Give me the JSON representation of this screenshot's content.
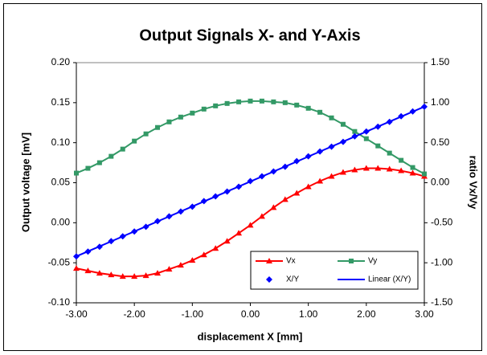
{
  "chart_data": {
    "type": "line",
    "title": "Output Signals X- and Y-Axis",
    "x_label": "displacement X [mm]",
    "y_label": "Output voltage [mV]",
    "y2_label": "ratio Vx/Vy",
    "x": [
      -3.0,
      -2.8,
      -2.6,
      -2.4,
      -2.2,
      -2.0,
      -1.8,
      -1.6,
      -1.4,
      -1.2,
      -1.0,
      -0.8,
      -0.6,
      -0.4,
      -0.2,
      0.0,
      0.2,
      0.4,
      0.6,
      0.8,
      1.0,
      1.2,
      1.4,
      1.6,
      1.8,
      2.0,
      2.2,
      2.4,
      2.6,
      2.8,
      3.0
    ],
    "series": [
      {
        "name": "Vx",
        "color": "#ff0000",
        "marker": "triangle",
        "line": true,
        "values": [
          -0.057,
          -0.06,
          -0.063,
          -0.065,
          -0.067,
          -0.067,
          -0.066,
          -0.063,
          -0.058,
          -0.053,
          -0.047,
          -0.04,
          -0.032,
          -0.023,
          -0.013,
          -0.003,
          0.008,
          0.019,
          0.029,
          0.037,
          0.045,
          0.052,
          0.058,
          0.063,
          0.066,
          0.068,
          0.068,
          0.067,
          0.065,
          0.062,
          0.058
        ]
      },
      {
        "name": "Vy",
        "color": "#339966",
        "marker": "square",
        "line": true,
        "values": [
          0.062,
          0.068,
          0.075,
          0.083,
          0.092,
          0.102,
          0.111,
          0.119,
          0.126,
          0.132,
          0.137,
          0.142,
          0.146,
          0.149,
          0.151,
          0.152,
          0.152,
          0.151,
          0.15,
          0.147,
          0.143,
          0.138,
          0.131,
          0.123,
          0.114,
          0.105,
          0.096,
          0.087,
          0.078,
          0.069,
          0.061
        ]
      },
      {
        "name": "X/Y",
        "color": "#0000ff",
        "marker": "diamond",
        "line": false,
        "axis": "y2",
        "values": [
          -0.92,
          -0.86,
          -0.8,
          -0.73,
          -0.67,
          -0.61,
          -0.55,
          -0.48,
          -0.42,
          -0.36,
          -0.3,
          -0.23,
          -0.17,
          -0.11,
          -0.05,
          0.02,
          0.08,
          0.14,
          0.2,
          0.27,
          0.33,
          0.39,
          0.45,
          0.51,
          0.58,
          0.64,
          0.7,
          0.76,
          0.83,
          0.89,
          0.95
        ]
      },
      {
        "name": "Linear (X/Y)",
        "color": "#0000ff",
        "marker": "none",
        "line": true,
        "axis": "y2",
        "x": [
          -3.0,
          3.0
        ],
        "values": [
          -0.92,
          0.95
        ]
      }
    ],
    "xlim": [
      -3,
      3
    ],
    "xticks": [
      {
        "value": -3,
        "label": "-3.00"
      },
      {
        "value": -2,
        "label": "-2.00"
      },
      {
        "value": -1,
        "label": "-1.00"
      },
      {
        "value": 0,
        "label": "0.00"
      },
      {
        "value": 1,
        "label": "1.00"
      },
      {
        "value": 2,
        "label": "2.00"
      },
      {
        "value": 3,
        "label": "3.00"
      }
    ],
    "ylim": [
      -0.1,
      0.2
    ],
    "yticks": [
      {
        "value": -0.1,
        "label": "-0.10"
      },
      {
        "value": -0.05,
        "label": "-0.05"
      },
      {
        "value": 0,
        "label": "0.00"
      },
      {
        "value": 0.05,
        "label": "0.05"
      },
      {
        "value": 0.1,
        "label": "0.10"
      },
      {
        "value": 0.15,
        "label": "0.15"
      },
      {
        "value": 0.2,
        "label": "0.20"
      }
    ],
    "y2lim": [
      -1.5,
      1.5
    ],
    "y2ticks": [
      {
        "value": -1.5,
        "label": "-1.50"
      },
      {
        "value": -1,
        "label": "-1.00"
      },
      {
        "value": -0.5,
        "label": "-0.50"
      },
      {
        "value": 0,
        "label": "0.00"
      },
      {
        "value": 0.5,
        "label": "0.50"
      },
      {
        "value": 1,
        "label": "1.00"
      },
      {
        "value": 1.5,
        "label": "1.50"
      }
    ],
    "grid": false,
    "legend": "lower-right"
  }
}
